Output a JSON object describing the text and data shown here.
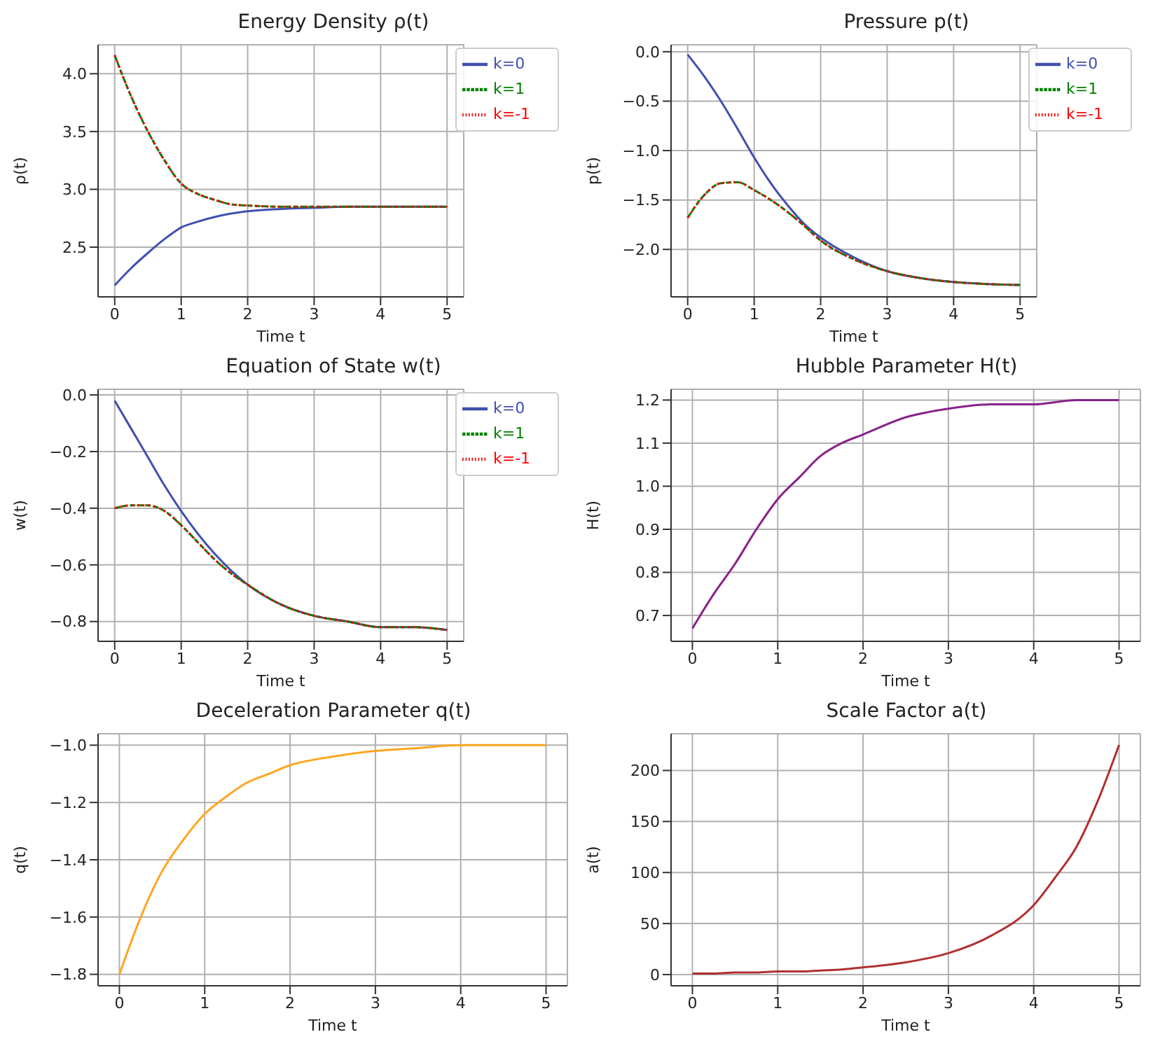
{
  "chart_data": [
    {
      "type": "line",
      "title": "Energy Density ρ(t)",
      "xlabel": "Time t",
      "ylabel": "ρ(t)",
      "x": [
        0,
        0.25,
        0.5,
        0.75,
        1,
        1.25,
        1.5,
        1.75,
        2,
        2.5,
        3,
        3.5,
        4,
        4.5,
        5
      ],
      "xlim": [
        -0.25,
        5.25
      ],
      "xticks": [
        0,
        1,
        2,
        3,
        4,
        5
      ],
      "ylim": [
        2.07,
        4.25
      ],
      "yticks": [
        {
          "value": 2.5,
          "label": "2.5"
        },
        {
          "value": 3,
          "label": "3.0"
        },
        {
          "value": 3.5,
          "label": "3.5"
        },
        {
          "value": 4,
          "label": "4.0"
        }
      ],
      "grid": true,
      "legend": "top right",
      "marker": "none",
      "series": [
        {
          "name": "k=0",
          "color": "#4050b0",
          "line_style": "solid",
          "values": [
            2.17,
            2.32,
            2.45,
            2.57,
            2.67,
            2.72,
            2.76,
            2.79,
            2.81,
            2.83,
            2.84,
            2.85,
            2.85,
            2.85,
            2.85
          ]
        },
        {
          "name": "k=1",
          "color": "#008000",
          "line_style": "dashed",
          "values": [
            4.16,
            3.8,
            3.5,
            3.25,
            3.05,
            2.96,
            2.91,
            2.87,
            2.86,
            2.85,
            2.85,
            2.85,
            2.85,
            2.85,
            2.85
          ]
        },
        {
          "name": "k=-1",
          "color": "#ff0000",
          "line_style": "dotted",
          "values": [
            4.16,
            3.8,
            3.5,
            3.25,
            3.05,
            2.96,
            2.91,
            2.87,
            2.86,
            2.85,
            2.85,
            2.85,
            2.85,
            2.85,
            2.85
          ]
        }
      ]
    },
    {
      "type": "line",
      "title": "Pressure p(t)",
      "xlabel": "Time t",
      "ylabel": "p(t)",
      "x": [
        0,
        0.25,
        0.5,
        0.75,
        1,
        1.25,
        1.5,
        1.75,
        2,
        2.5,
        3,
        3.5,
        4,
        4.5,
        5
      ],
      "xlim": [
        -0.25,
        5.25
      ],
      "xticks": [
        0,
        1,
        2,
        3,
        4,
        5
      ],
      "ylim": [
        -2.48,
        0.07
      ],
      "yticks": [
        {
          "value": -2,
          "label": "−2.0"
        },
        {
          "value": -1.5,
          "label": "−1.5"
        },
        {
          "value": -1,
          "label": "−1.0"
        },
        {
          "value": -0.5,
          "label": "−0.5"
        },
        {
          "value": 0,
          "label": "0.0"
        }
      ],
      "grid": true,
      "legend": "top right",
      "marker": "none",
      "series": [
        {
          "name": "k=0",
          "color": "#4050b0",
          "line_style": "solid",
          "values": [
            -0.03,
            -0.25,
            -0.5,
            -0.78,
            -1.07,
            -1.33,
            -1.55,
            -1.74,
            -1.88,
            -2.08,
            -2.22,
            -2.29,
            -2.33,
            -2.35,
            -2.36
          ]
        },
        {
          "name": "k=1",
          "color": "#008000",
          "line_style": "dashed",
          "values": [
            -1.68,
            -1.45,
            -1.33,
            -1.32,
            -1.4,
            -1.5,
            -1.62,
            -1.76,
            -1.91,
            -2.1,
            -2.22,
            -2.29,
            -2.33,
            -2.35,
            -2.36
          ]
        },
        {
          "name": "k=-1",
          "color": "#ff0000",
          "line_style": "dotted",
          "values": [
            -1.68,
            -1.45,
            -1.33,
            -1.32,
            -1.4,
            -1.5,
            -1.62,
            -1.76,
            -1.91,
            -2.1,
            -2.22,
            -2.29,
            -2.33,
            -2.35,
            -2.36
          ]
        }
      ]
    },
    {
      "type": "line",
      "title": "Equation of State w(t)",
      "xlabel": "Time t",
      "ylabel": "w(t)",
      "x": [
        0,
        0.25,
        0.5,
        0.75,
        1,
        1.25,
        1.5,
        1.75,
        2,
        2.5,
        3,
        3.5,
        4,
        4.5,
        5
      ],
      "xlim": [
        -0.25,
        5.25
      ],
      "xticks": [
        0,
        1,
        2,
        3,
        4,
        5
      ],
      "ylim": [
        -0.87,
        0.02
      ],
      "yticks": [
        {
          "value": -0.8,
          "label": "−0.8"
        },
        {
          "value": -0.6,
          "label": "−0.6"
        },
        {
          "value": -0.4,
          "label": "−0.4"
        },
        {
          "value": -0.2,
          "label": "−0.2"
        },
        {
          "value": 0,
          "label": "0.0"
        }
      ],
      "grid": true,
      "legend": "top right",
      "marker": "none",
      "series": [
        {
          "name": "k=0",
          "color": "#4050b0",
          "line_style": "solid",
          "values": [
            -0.02,
            -0.12,
            -0.22,
            -0.32,
            -0.41,
            -0.49,
            -0.56,
            -0.62,
            -0.67,
            -0.74,
            -0.78,
            -0.8,
            -0.82,
            -0.82,
            -0.83
          ]
        },
        {
          "name": "k=1",
          "color": "#008000",
          "line_style": "dashed",
          "values": [
            -0.4,
            -0.39,
            -0.39,
            -0.41,
            -0.46,
            -0.52,
            -0.58,
            -0.63,
            -0.67,
            -0.74,
            -0.78,
            -0.8,
            -0.82,
            -0.82,
            -0.83
          ]
        },
        {
          "name": "k=-1",
          "color": "#ff0000",
          "line_style": "dotted",
          "values": [
            -0.4,
            -0.39,
            -0.39,
            -0.41,
            -0.46,
            -0.52,
            -0.58,
            -0.63,
            -0.67,
            -0.74,
            -0.78,
            -0.8,
            -0.82,
            -0.82,
            -0.83
          ]
        }
      ]
    },
    {
      "type": "line",
      "title": "Hubble Parameter H(t)",
      "xlabel": "Time t",
      "ylabel": "H(t)",
      "x": [
        0,
        0.25,
        0.5,
        0.75,
        1,
        1.25,
        1.5,
        1.75,
        2,
        2.5,
        3,
        3.5,
        4,
        4.5,
        5
      ],
      "xlim": [
        -0.25,
        5.25
      ],
      "xticks": [
        0,
        1,
        2,
        3,
        4,
        5
      ],
      "ylim": [
        0.64,
        1.225
      ],
      "yticks": [
        {
          "value": 0.7,
          "label": "0.7"
        },
        {
          "value": 0.8,
          "label": "0.8"
        },
        {
          "value": 0.9,
          "label": "0.9"
        },
        {
          "value": 1,
          "label": "1.0"
        },
        {
          "value": 1.1,
          "label": "1.1"
        },
        {
          "value": 1.2,
          "label": "1.2"
        }
      ],
      "grid": true,
      "marker": "none",
      "series": [
        {
          "color": "#882288",
          "line_style": "solid",
          "values": [
            0.67,
            0.75,
            0.82,
            0.9,
            0.97,
            1.02,
            1.07,
            1.1,
            1.12,
            1.16,
            1.18,
            1.19,
            1.19,
            1.2,
            1.2
          ]
        }
      ]
    },
    {
      "type": "line",
      "title": "Deceleration Parameter q(t)",
      "xlabel": "Time t",
      "ylabel": "q(t)",
      "x": [
        0,
        0.25,
        0.5,
        0.75,
        1,
        1.25,
        1.5,
        1.75,
        2,
        2.5,
        3,
        3.5,
        4,
        4.5,
        5
      ],
      "xlim": [
        -0.25,
        5.25
      ],
      "xticks": [
        0,
        1,
        2,
        3,
        4,
        5
      ],
      "ylim": [
        -1.84,
        -0.96
      ],
      "yticks": [
        {
          "value": -1.8,
          "label": "−1.8"
        },
        {
          "value": -1.6,
          "label": "−1.6"
        },
        {
          "value": -1.4,
          "label": "−1.4"
        },
        {
          "value": -1.2,
          "label": "−1.2"
        },
        {
          "value": -1,
          "label": "−1.0"
        }
      ],
      "grid": true,
      "marker": "none",
      "series": [
        {
          "color": "#ffa520",
          "line_style": "solid",
          "values": [
            -1.8,
            -1.6,
            -1.44,
            -1.33,
            -1.24,
            -1.18,
            -1.13,
            -1.1,
            -1.07,
            -1.04,
            -1.02,
            -1.01,
            -1.0,
            -1.0,
            -1.0
          ]
        }
      ]
    },
    {
      "type": "line",
      "title": "Scale Factor a(t)",
      "xlabel": "Time t",
      "ylabel": "a(t)",
      "x": [
        0,
        0.25,
        0.5,
        0.75,
        1,
        1.25,
        1.5,
        1.75,
        2,
        2.5,
        3,
        3.5,
        4,
        4.25,
        4.5,
        4.75,
        5
      ],
      "xlim": [
        -0.25,
        5.25
      ],
      "xticks": [
        0,
        1,
        2,
        3,
        4,
        5
      ],
      "ylim": [
        -11,
        236
      ],
      "yticks": [
        0,
        50,
        100,
        150,
        200
      ],
      "grid": true,
      "marker": "none",
      "series": [
        {
          "color": "#b03030",
          "line_style": "solid",
          "values": [
            1,
            1,
            2,
            2,
            3,
            3,
            4,
            5,
            7,
            12,
            21,
            38,
            68,
            95,
            125,
            170,
            225
          ]
        }
      ]
    }
  ]
}
